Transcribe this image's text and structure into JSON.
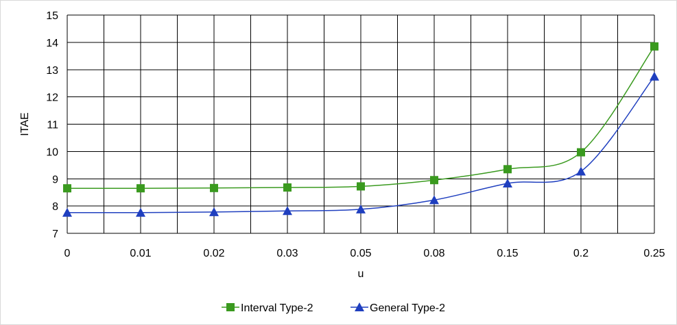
{
  "chart_data": {
    "type": "line",
    "title": "",
    "xlabel": "u",
    "ylabel": "ITAE",
    "categories": [
      "0",
      "0.01",
      "0.02",
      "0.03",
      "0.05",
      "0.08",
      "0.15",
      "0.2",
      "0.25"
    ],
    "ylim": [
      7,
      15
    ],
    "yticks": [
      7,
      8,
      9,
      10,
      11,
      12,
      13,
      14,
      15
    ],
    "grid": true,
    "legend_position": "bottom",
    "series": [
      {
        "name": "Interval Type-2",
        "marker": "square",
        "color": "#3a9a1f",
        "values": [
          8.65,
          8.65,
          8.66,
          8.68,
          8.72,
          8.95,
          9.35,
          9.97,
          13.85
        ]
      },
      {
        "name": "General Type-2",
        "marker": "triangle",
        "color": "#1f3fbf",
        "values": [
          7.76,
          7.76,
          7.78,
          7.82,
          7.88,
          8.22,
          8.83,
          9.27,
          12.75
        ]
      }
    ]
  }
}
